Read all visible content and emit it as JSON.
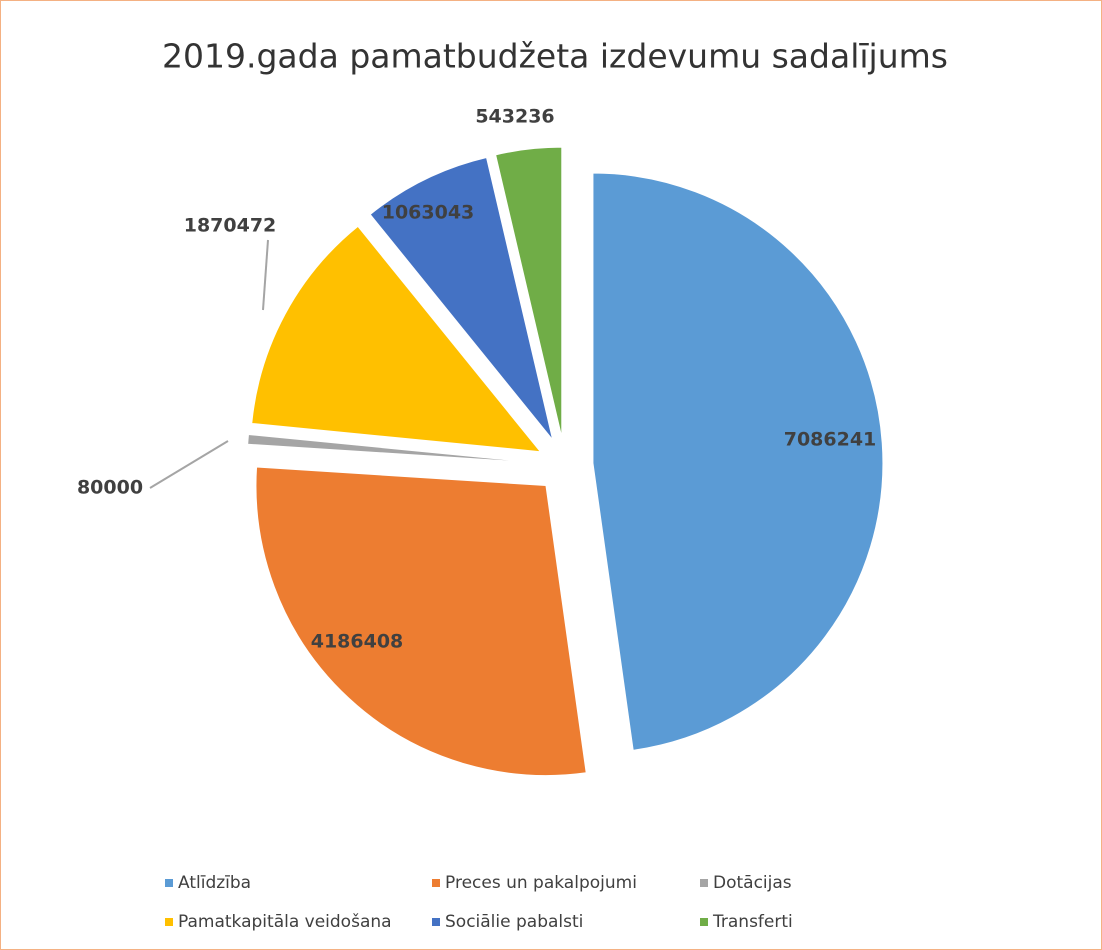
{
  "chart_data": {
    "type": "pie",
    "title": "2019.gada pamatbudžeta izdevumu sadalījums",
    "categories": [
      "Atlīdzība",
      "Preces un pakalpojumi",
      "Dotācijas",
      "Pamatkapitāla veidošana",
      "Sociālie pabalsti",
      "Transferti"
    ],
    "values": [
      7086241,
      4186408,
      80000,
      1870472,
      1063043,
      543236
    ],
    "colors": [
      "#5b9bd5",
      "#ed7d31",
      "#a5a5a5",
      "#ffc000",
      "#4472c4",
      "#70ad47"
    ],
    "legend": "bottom"
  }
}
